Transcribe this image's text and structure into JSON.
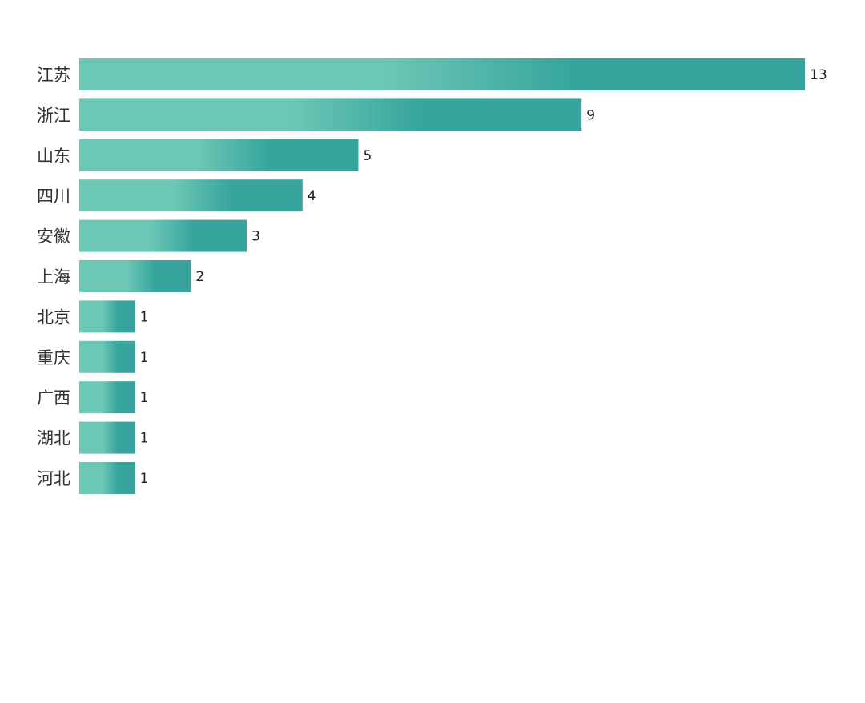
{
  "chart_data": {
    "type": "bar",
    "orientation": "horizontal",
    "categories": [
      "江苏",
      "浙江",
      "山东",
      "四川",
      "安徽",
      "上海",
      "北京",
      "重庆",
      "广西",
      "湖北",
      "河北"
    ],
    "values": [
      13,
      9,
      5,
      4,
      3,
      2,
      1,
      1,
      1,
      1,
      1
    ],
    "title": "",
    "xlabel": "",
    "ylabel": "",
    "xlim": [
      0,
      13
    ],
    "grid": false,
    "legend": "none",
    "data_labels": true
  },
  "colors": {
    "bar_light": "#6dc7b5",
    "bar_dark": "#37a59e",
    "label": "#333333",
    "value_label": "#222222",
    "background": "#ffffff"
  }
}
